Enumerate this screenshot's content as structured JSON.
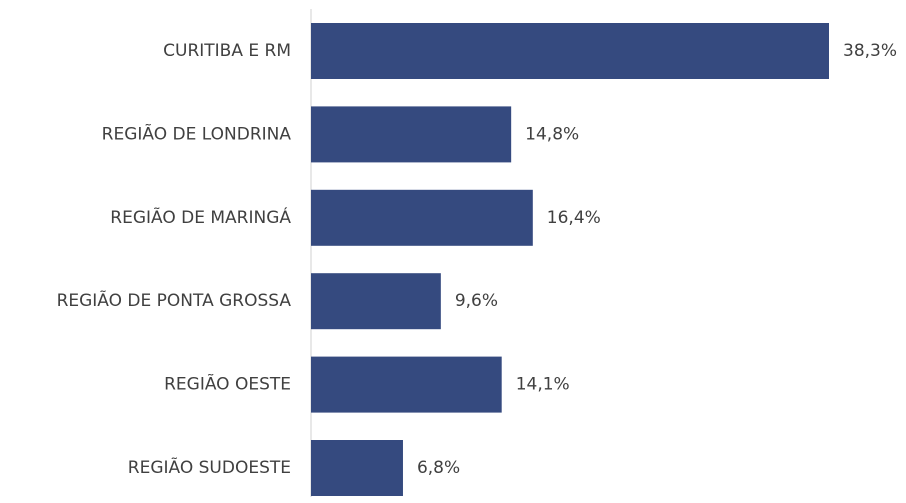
{
  "chart_data": {
    "type": "bar",
    "orientation": "horizontal",
    "categories": [
      "CURITIBA E RM",
      "REGIÃO DE LONDRINA",
      "REGIÃO DE MARINGÁ",
      "REGIÃO DE PONTA GROSSA",
      "REGIÃO OESTE",
      "REGIÃO SUDOESTE"
    ],
    "values": [
      38.3,
      14.8,
      16.4,
      9.6,
      14.1,
      6.8
    ],
    "value_labels": [
      "38,3%",
      "14,8%",
      "16,4%",
      "9,6%",
      "14,1%",
      "6,8%"
    ],
    "color": "#354a7f"
  }
}
